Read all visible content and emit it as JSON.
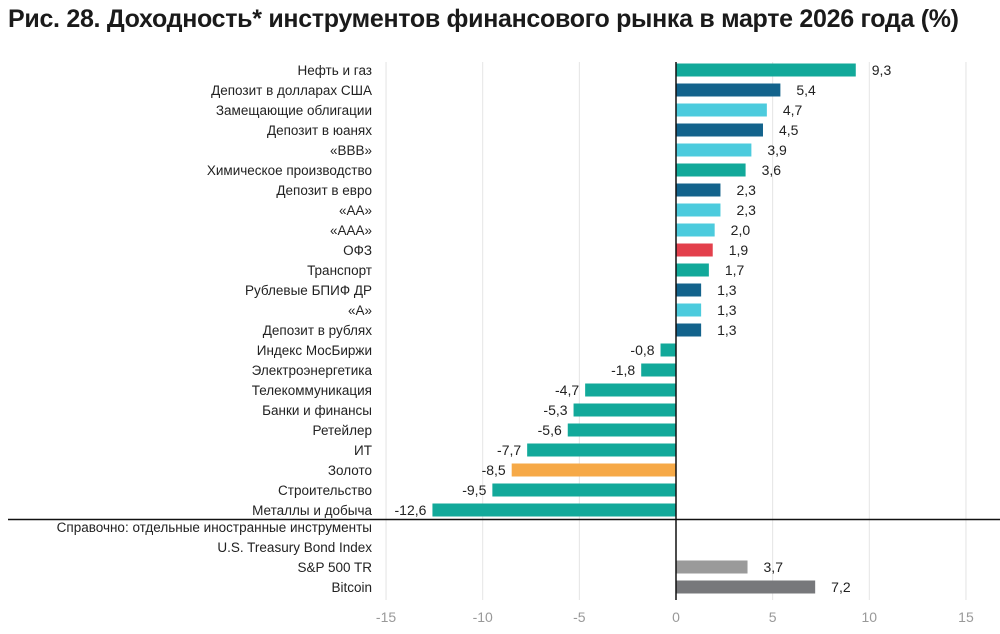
{
  "chart_data": {
    "type": "bar",
    "orientation": "horizontal",
    "title": "Рис. 28. Доходность* инструментов финансового рынка в марте 2026 года (%)",
    "xlim": [
      -15,
      15
    ],
    "xticks": [
      "-15",
      "-10",
      "-5",
      "0",
      "5",
      "10",
      "15"
    ],
    "grid": true,
    "colors": {
      "sector": "#12a99a",
      "deposit": "#13638c",
      "bond": "#4ccbdd",
      "ofz": "#e3404c",
      "gold": "#f6a947",
      "sp500": "#9a9a9a",
      "bitcoin": "#77787b"
    },
    "categories": [
      {
        "label": "Нефть и газ",
        "value": 9.3,
        "text": "9,3",
        "color": "sector"
      },
      {
        "label": "Депозит в долларах США",
        "value": 5.4,
        "text": "5,4",
        "color": "deposit"
      },
      {
        "label": "Замещающие облигации",
        "value": 4.7,
        "text": "4,7",
        "color": "bond"
      },
      {
        "label": "Депозит в юанях",
        "value": 4.5,
        "text": "4,5",
        "color": "deposit"
      },
      {
        "label": "«BBB»",
        "value": 3.9,
        "text": "3,9",
        "color": "bond"
      },
      {
        "label": "Химическое производство",
        "value": 3.6,
        "text": "3,6",
        "color": "sector"
      },
      {
        "label": "Депозит в евро",
        "value": 2.3,
        "text": "2,3",
        "color": "deposit"
      },
      {
        "label": "«AA»",
        "value": 2.3,
        "text": "2,3",
        "color": "bond"
      },
      {
        "label": "«AAA»",
        "value": 2.0,
        "text": "2,0",
        "color": "bond"
      },
      {
        "label": "ОФЗ",
        "value": 1.9,
        "text": "1,9",
        "color": "ofz"
      },
      {
        "label": "Транспорт",
        "value": 1.7,
        "text": "1,7",
        "color": "sector"
      },
      {
        "label": "Рублевые БПИФ ДР",
        "value": 1.3,
        "text": "1,3",
        "color": "deposit"
      },
      {
        "label": "«A»",
        "value": 1.3,
        "text": "1,3",
        "color": "bond"
      },
      {
        "label": "Депозит в рублях",
        "value": 1.3,
        "text": "1,3",
        "color": "deposit"
      },
      {
        "label": "Индекс МосБиржи",
        "value": -0.8,
        "text": "-0,8",
        "color": "sector"
      },
      {
        "label": "Электроэнергетика",
        "value": -1.8,
        "text": "-1,8",
        "color": "sector"
      },
      {
        "label": "Телекоммуникация",
        "value": -4.7,
        "text": "-4,7",
        "color": "sector"
      },
      {
        "label": "Банки и финансы",
        "value": -5.3,
        "text": "-5,3",
        "color": "sector"
      },
      {
        "label": "Ретейлер",
        "value": -5.6,
        "text": "-5,6",
        "color": "sector"
      },
      {
        "label": "ИТ",
        "value": -7.7,
        "text": "-7,7",
        "color": "sector"
      },
      {
        "label": "Золото",
        "value": -8.5,
        "text": "-8,5",
        "color": "gold"
      },
      {
        "label": "Строительство",
        "value": -9.5,
        "text": "-9,5",
        "color": "sector"
      },
      {
        "label": "Металлы и добыча",
        "value": -12.6,
        "text": "-12,6",
        "color": "sector"
      }
    ],
    "reference_heading": "Справочно: отдельные иностранные инструменты",
    "reference": [
      {
        "label": "U.S. Treasury Bond Index",
        "value": null,
        "text": "",
        "color": "sp500"
      },
      {
        "label": "S&P 500 TR",
        "value": 3.7,
        "text": "3,7",
        "color": "sp500"
      },
      {
        "label": "Bitcoin",
        "value": 7.2,
        "text": "7,2",
        "color": "bitcoin"
      }
    ]
  }
}
